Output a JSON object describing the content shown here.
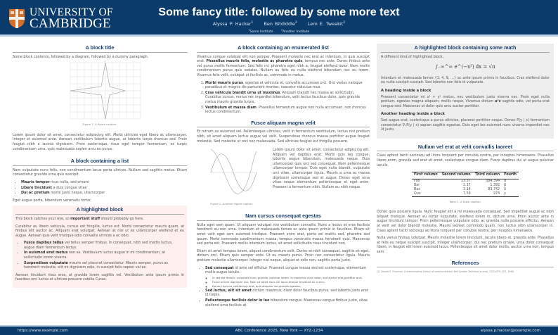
{
  "header": {
    "logo_line1": "UNIVERSITY OF",
    "logo_line2": "CAMBRIDGE",
    "title": "Some fancy title: followed by some more text",
    "authors": [
      {
        "name": "Alyssa P. Hacker",
        "sup": "1"
      },
      {
        "name": "Ben Bitdiddle",
        "sup": "2"
      },
      {
        "name": "Lem E. Tweakit",
        "sup": "2"
      }
    ],
    "institutions": [
      {
        "sup": "1",
        "name": "Some Institute"
      },
      {
        "sup": "2",
        "name": "Another Institute"
      }
    ],
    "colors": {
      "header_bg": "#0b3b6b",
      "heading": "#1b3f6c",
      "highlight_bg": "#fdf0ee",
      "math_block_bg": "#eeeeee"
    }
  },
  "col1": {
    "block1": {
      "title": "A block title",
      "intro": "Some block contents, followed by a diagram, followed by a dummy paragraph.",
      "caption": "Figure 1. A figure caption.",
      "para": "Lorem ipsum dolor sit amet, consectetur adipiscing elit. Morbi ultricies eget libero ac ullamcorper. Integer et euismod ante. Aenean vestibulum lobortis augue, ut lobortis turpis rhoncus sed. Proin feugiat nibh a lacinia dignissim. Proin scelerisque, risus eget tempor fermentum, ex turpis condimentum urna, quis malesuada sapien arcu eu purus."
    },
    "block2": {
      "title": "A block containing a list",
      "intro": "Nam vulputate nunc felis, non condimentum lacus porta ultrices. Nullam sed sagittis metus. Etiam consectetur gravida urna quis suscipit.",
      "items": [
        {
          "bold": "Mauris tempor",
          "text": " risus nulla, sed ornare"
        },
        {
          "bold": "Libero tincidunt",
          "text": " a duis congue vitae"
        },
        {
          "bold": "Dui ac pretium",
          "text": " morbi justo neque, ullamcorper"
        }
      ],
      "outro": "Eget augue porta, bibendum venenatis tortor."
    },
    "block3": {
      "title": "A highlighted block",
      "p1_pre": "This block catches your eye, so ",
      "p1_bold": "important stuff",
      "p1_post": " should probably go here.",
      "p2": "Curabitur eu libero vehicula, cursus est fringilla, luctus est. Morbi consectetur mauris quam, at finibus elit auctor ac. Aliquam erat volutpat. Aenean at nisl ut ex ullamcorper eleifend et eu augue. Aenean quis velit tristique odio convallis ultrices a ac odio.",
      "items": [
        {
          "bold": "Fusce dapibus tellus",
          "text": " vel tellus semper finibus. In consequat, nibh sed mattis luctus, augue diam fermentum lectus."
        },
        {
          "bold": "In euismod erat metus",
          "text": " non ex. Vestibulum luctus augue in mi condimentum, at sollicitudin lorem viverra."
        },
        {
          "bold": "Suspendisse vulputate",
          "text": " mauris vel placerat consectetur. Mauris semper, purus ac hendrerit molestie, elit mi dignissim odio, in suscipit felis sapien vel ex."
        }
      ],
      "p3": "Aenean tincidunt risus eros, at gravida lorem sagittis vel. Vestibulum ante ipsum primis in faucibus orci luctus et ultrices posuere cubilia Curae."
    }
  },
  "col2": {
    "block1": {
      "title": "A block containing an enumerated list",
      "p_pre": "Vivamus congue volutpat elit non semper. Praesent molestie nec erat ac interdum. In quis suscipit erat. ",
      "p_bold": "Phasellus mauris felis, molestie ac pharetra quis",
      "p_post": ", tempus nec ante. Donec finibus ante vel purus mollis fermentum. Sed felis mi, pharetra eget nibh a, feugiat eleifend dolor. Nam mollis condimentum purus quis sodales. Nullam eu felis eu nulla eleifend bibendum nec eu lorem. Vivamus felis velit, volutpat ut facilisis ac, commodo in metus.",
      "items": [
        {
          "bold": "Morbi mauris purus",
          "text": ", egestas at vehicula et, convallis accumsan orci. Orci varius natoque penatibus et magnis dis parturient montes, nascetur ridiculus mus."
        },
        {
          "bold": "Cras vehicula blandit urna ut maximus",
          "text": ". Aliquam blandit nec massa ac sollicitudin. Curabitur cursus, metus nec imperdiet bibendum, velit lectus faucibus dolor, quis gravida metus mauris gravida turpis."
        },
        {
          "bold": "Vestibulum et massa diam",
          "text": ". Phasellus fermentum augue non nulla accumsan, non rhoncus lectus condimentum."
        }
      ]
    },
    "block2": {
      "title": "Fusce aliquam magna velit",
      "p1": "Et rutrum ex euismod vel. Pellentesque ultricies, velit in fermentum vestibulum, lectus nisi pretium nibh, sit amet aliquam lectus augue vel velit. Suspendisse rhoncus massa porttitor augue feugiat molestie. Sed molestie ut orci nec malesuada. Sed ultricies feugiat est fringilla posuere.",
      "side": "Lorem ipsum dolor sit amet, consectetur adipiscing elit. Aliquam vel dapibus erat. Morbi quis leo congue, lobortis augue bibendum, malesuada neque. Duis ullamcorper quis orci sed consequat. Nam pellentesque ullamcorper tempor. Duis eget nulla blandit, vulputate orci vitae, ullamcorper ligula. Mauris a urna ac massa dignissim scelerisque sed at augue. Donec eget urna vitae neque elementum pellentesque et eget enim. Praesent a fermentum nibh. Nullam eu nibh neque.",
      "caption": "Figure 2. Another figure caption."
    },
    "block3": {
      "title": "Nam cursus consequat egestas",
      "p1": "Nulla eget sem quam. Ut aliquam volutpat nisi vestibulum convallis. Nunc a lectus et eros facilisis hendrerit eu non urna. Interdum et malesuada fames ac ante ipsum primis in faucibus. Etiam sit amet velit eget sem euismod tristique. Praesent enim erat, porta vel mattis sed, pharetra sed ipsum. Morbi commodo condimentum massa, tempus venenatis massa hendrerit quis. Maecenas sed porta est. Praesent mollis interdum lectus, sit amet sollicitudin risus tincidunt non.",
      "p2": "Etiam sit amet tempus lorem, aliquet condimentum velit. Donec et nibh consequat, sagittis ex eget, dictum orci. Etiam quis semper ante. Ut eu mauris purus. Proin nec consectetur ligula. Mauris pretium molestie ullamcorper. Integer nisi neque, aliquet et odio non, sagittis porta justo.",
      "items": [
        {
          "bold": "Sed consequat",
          "text": " id ante vel efficitur. Praesent congue massa sed est scelerisque, elementum mollis augue iaculis.",
          "sub": [
            "In sed est finibus, vulputate nunc gravida, pulvinar lorem. In maximus nunc dolor, sed auctor eros porttitor quis.",
            "Fusce ornare dignissim nisi. Nam sit amet risus vel lacus tempor tincidunt eu a arcu.",
            "Donec rhoncus vestibulum erat, quis aliquam leo gravida egestas."
          ]
        },
        {
          "bold": "Sed luctus, elit sit amet",
          "text": " dictum maximus, diam dolor faucibus purus, sed lobortis justo erat id turpis."
        },
        {
          "bold": "Pellentesque facilisis dolor in leo",
          "text": " bibendum congue. Maecenas congue finibus justo, vitae eleifend urna facilisis at."
        }
      ]
    }
  },
  "col3": {
    "block1": {
      "title": "A highlighted block containing some math",
      "intro": "A different kind of highlighted block.",
      "math": "∫₋∞^∞ e^(−x²) dx = √π",
      "p1": "Interdum et malesuada fames {1, 4, 9, …} ac ante ipsum primis in faucibus. Cras eleifend dolor eu nulla suscipit suscipit. Sed lobortis non felis id vulputate.",
      "h1": "A heading inside a block",
      "p2_pre": "Praesent consectetur mi x² + y² metus, nec vestibulum justo viverra nec. Proin eget nulla pretium, egestas magna aliquam, mollis neque. Vivamus dictum ",
      "p2_bold": "uᵀv",
      "p2_post": " sagittis odio, vel porta erat congue sed. Maecenas ut dolor quis arcu auctor porttitor.",
      "h2": "Another heading inside a block",
      "p3": "Sed augue erat, scelerisque a purus ultricies, placerat porttitor neque. Donec P(y | x) fermentum consectetur ∇ₓP(y | x) sapien sagittis egestas. Duis eget leo euismod nunc viverra imperdiet nec id justo."
    },
    "block2": {
      "title": "Nullam vel erat at velit convallis laoreet",
      "p1": "Class aptent taciti sociosqu ad litora torquent per conubia nostra, per inceptos himenaeos. Phasellus libero enim, gravida sed erat sit amet, scelerisque congue diam. Fusce dapibus dui ut augue pulvinar iaculis.",
      "table": {
        "headers": [
          "First column",
          "Second column",
          "Third column",
          "Fourth"
        ],
        "rows": [
          [
            "Foo",
            "13.37",
            "384,394",
            "α"
          ],
          [
            "Bar",
            "2.17",
            "1,392",
            "β"
          ],
          [
            "Baz",
            "3.14",
            "83,742",
            "δ"
          ],
          [
            "Qux",
            "7.59",
            "974",
            "γ"
          ]
        ]
      },
      "caption": "Table 1. A table caption.",
      "p2": "Donec quis posuere ligula. Nunc feugiat elit a mi malesuada consequat. Sed imperdiet augue ac nibh aliquet tristique. Aenean eu tortor vulputate, eleifend lorem in, dictum urna. Proin auctor ante in augue tincidunt tempor. Proin pellentesque vulputate odio, ac gravida nulla posuere efficitur. Aenean at velit vel dolor blandit molestie. Mauris laoreet commodo quam, non luctus nibh ullamcorper in. Class aptent taciti sociosqu ad litora torquent per conubia nostra, per inceptos himenaeos.",
      "p3": "Nulla varius finibus volutpat. Mauris molestie lorem tincidunt, iaculis libero at, gravida ante. Phasellus at felis eu neque suscipit suscipit. Integer ullamcorper, dui nec pretium ornare, urna dolor consequat libero, in feugiat elit lorem euismod lacus. Pellentesque sit amet dolor mollis, auctor urna non, tempus sem."
    },
    "refs": {
      "title": "References",
      "items": [
        "[1]  Claude E. Shannon. A mathematical theory of communication. Bell System Technical Journal, 27(3):379–423, 1948."
      ]
    }
  },
  "footer": {
    "left": "https://www.example.com",
    "center": "ABC Conference 2025, New York — XYZ-1234",
    "right": "alyssa.p.hacker@example.com"
  }
}
